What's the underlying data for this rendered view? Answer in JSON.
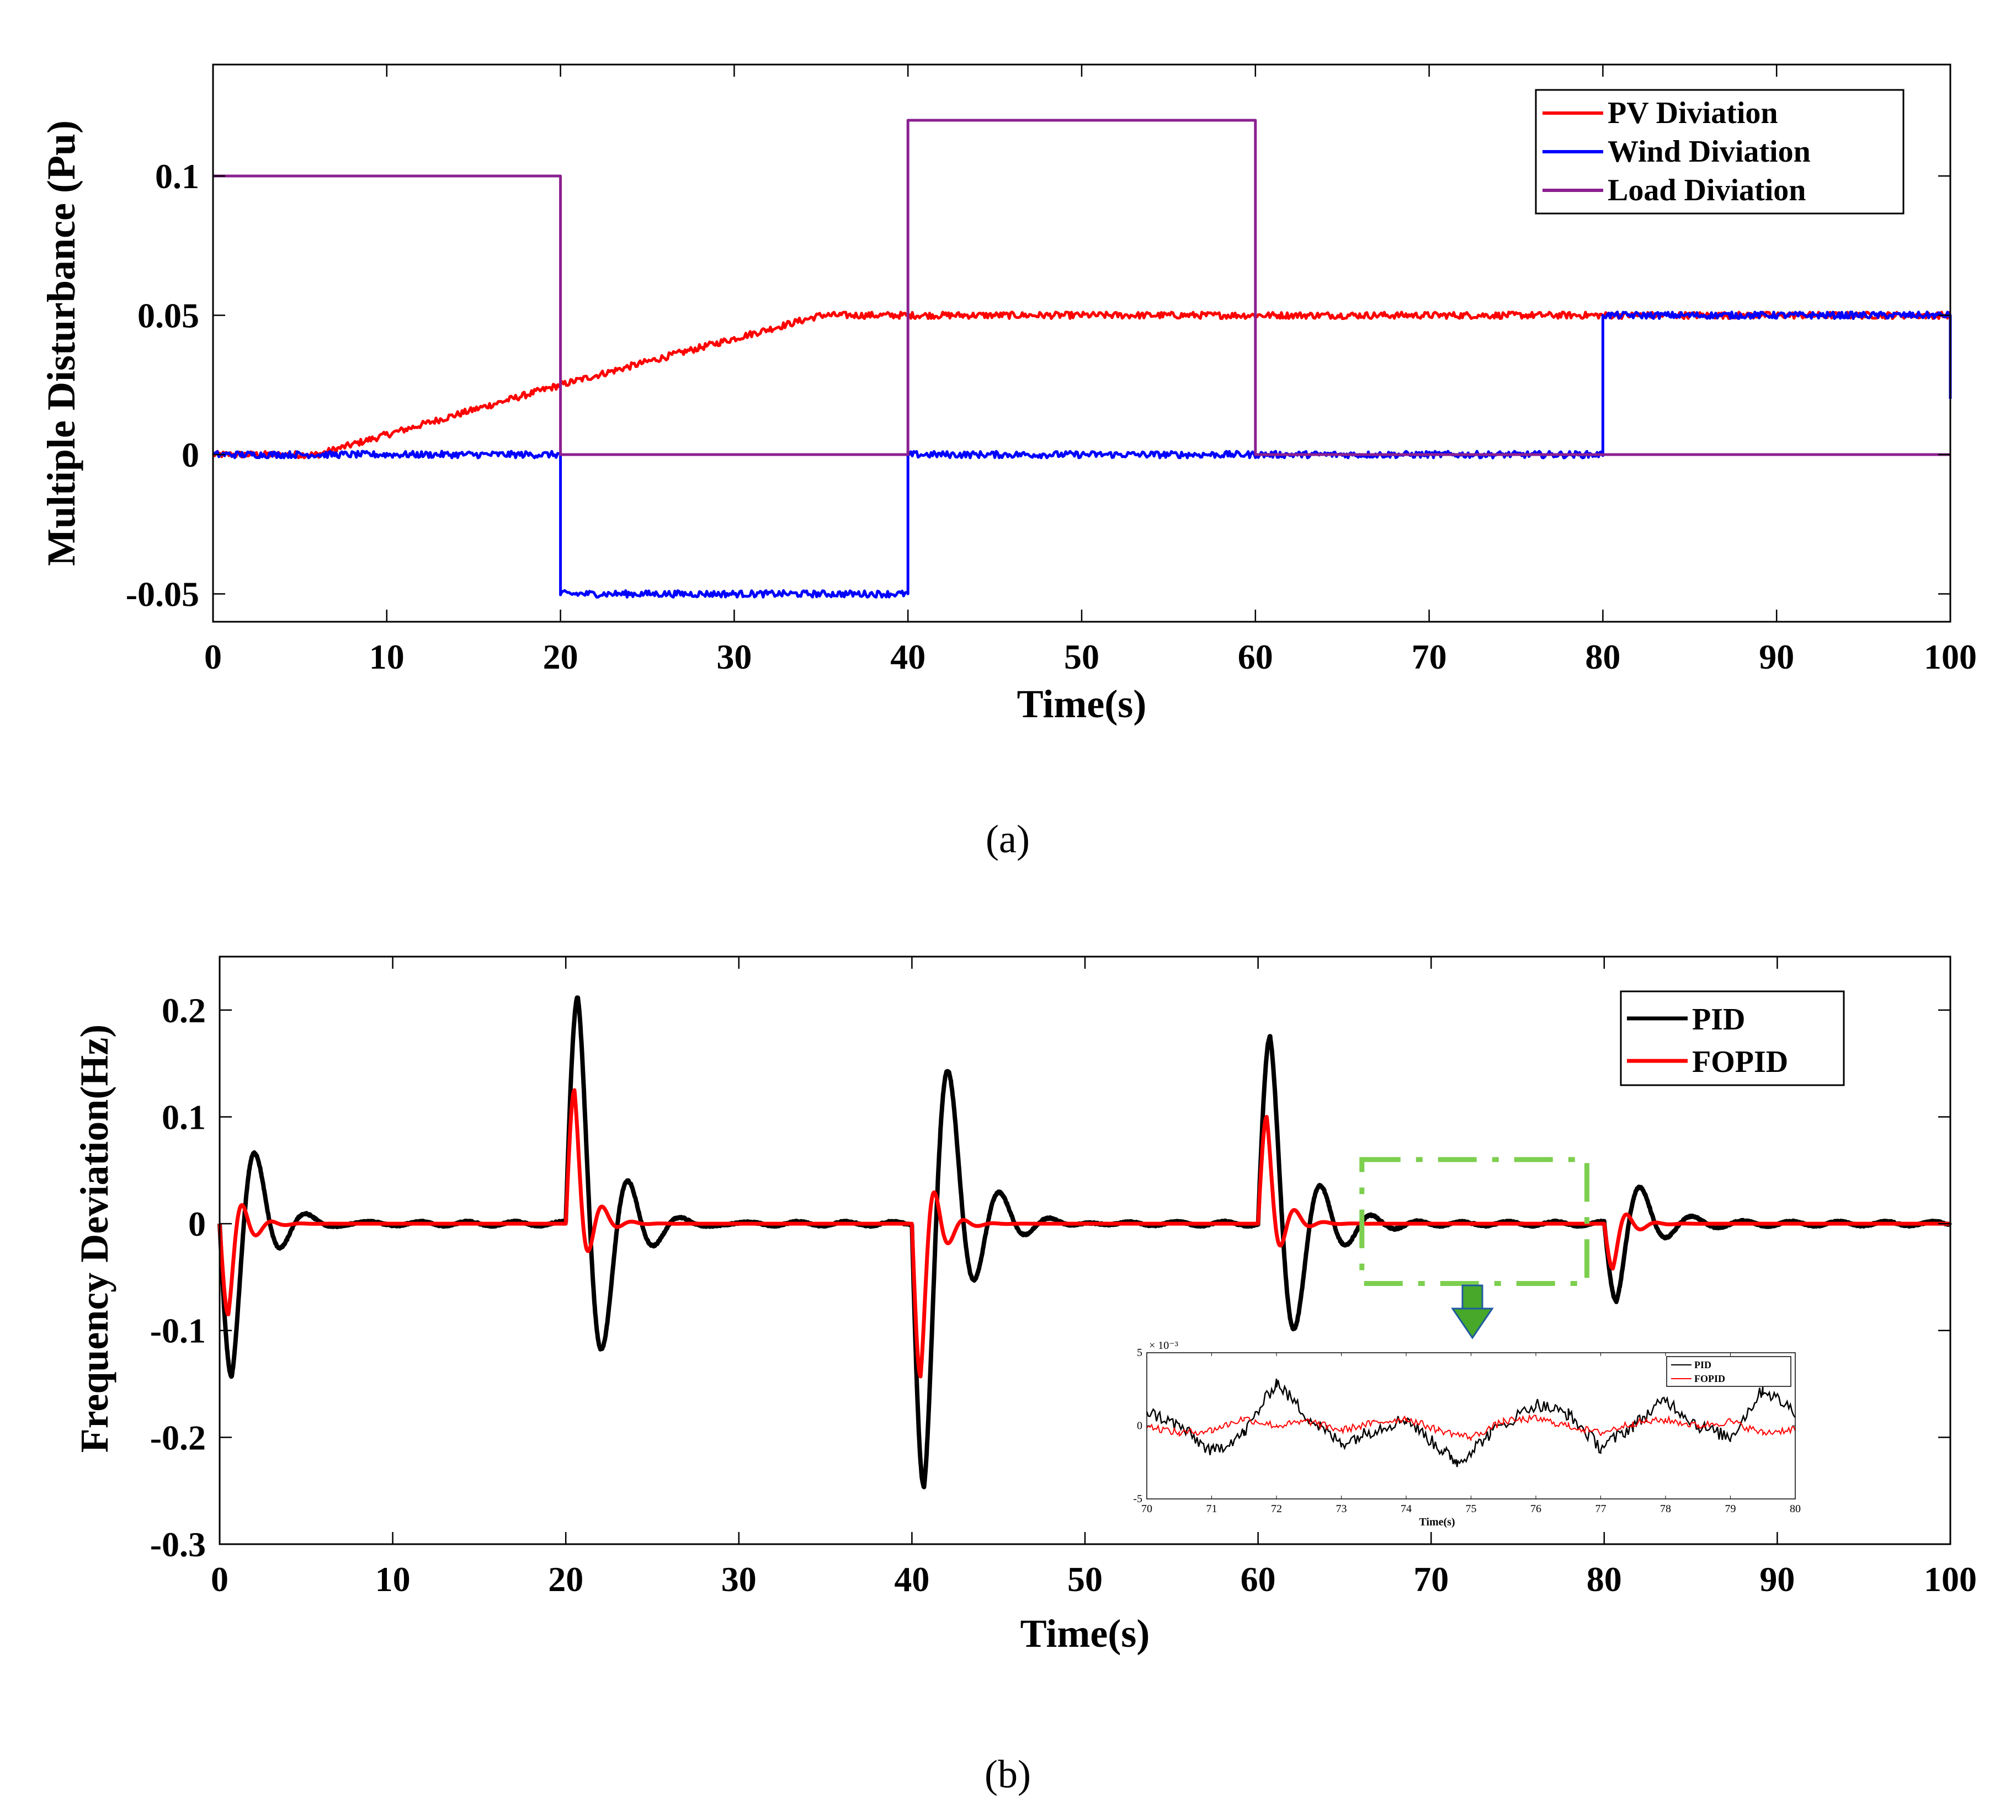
{
  "chart_data": [
    {
      "id": "a",
      "type": "line",
      "caption": "(a)",
      "xlabel": "Time(s)",
      "ylabel": "Multiple Disturbance (Pu)",
      "xlim": [
        0,
        100
      ],
      "ylim": [
        -0.06,
        0.14
      ],
      "xticks": [
        0,
        10,
        20,
        30,
        40,
        50,
        60,
        70,
        80,
        90,
        100
      ],
      "xtick_labels": [
        "0",
        "10",
        "20",
        "30",
        "40",
        "50",
        "60",
        "70",
        "80",
        "90",
        "100"
      ],
      "yticks": [
        -0.05,
        0,
        0.05,
        0.1
      ],
      "ytick_labels": [
        "-0.05",
        "0",
        "0.05",
        "0.1"
      ],
      "legend_position": "top-right",
      "series": [
        {
          "name": "PV Diviation",
          "color": "#ff0000",
          "noise": 0.0012,
          "points": [
            [
              0,
              0
            ],
            [
              6,
              0
            ],
            [
              20,
              0.025
            ],
            [
              35,
              0.05
            ],
            [
              100,
              0.05
            ]
          ]
        },
        {
          "name": "Wind Diviation",
          "color": "#0000ff",
          "noise": 0.0012,
          "points": [
            [
              0,
              0
            ],
            [
              20,
              0
            ],
            [
              20,
              -0.05
            ],
            [
              40,
              -0.05
            ],
            [
              40,
              0
            ],
            [
              80,
              0
            ],
            [
              80,
              0.05
            ],
            [
              100,
              0.05
            ],
            [
              100,
              0.02
            ]
          ]
        },
        {
          "name": "Load Diviation",
          "color": "#8b2090",
          "noise": 0,
          "points": [
            [
              0,
              0.1
            ],
            [
              20,
              0.1
            ],
            [
              20,
              0
            ],
            [
              40,
              0
            ],
            [
              40,
              0.12
            ],
            [
              60,
              0.12
            ],
            [
              60,
              0
            ],
            [
              100,
              0
            ]
          ]
        }
      ]
    },
    {
      "id": "b",
      "type": "line",
      "caption": "(b)",
      "xlabel": "Time(s)",
      "ylabel": "Frequency Deviation(Hz)",
      "xlim": [
        0,
        100
      ],
      "ylim": [
        -0.3,
        0.25
      ],
      "xticks": [
        0,
        10,
        20,
        30,
        40,
        50,
        60,
        70,
        80,
        90,
        100
      ],
      "xtick_labels": [
        "0",
        "10",
        "20",
        "30",
        "40",
        "50",
        "60",
        "70",
        "80",
        "90",
        "100"
      ],
      "yticks": [
        -0.3,
        -0.2,
        -0.1,
        0,
        0.1,
        0.2
      ],
      "ytick_labels": [
        "-0.3",
        "-0.2",
        "-0.1",
        "0",
        "0.1",
        "0.2"
      ],
      "legend_position": "top-right",
      "series": [
        {
          "name": "PID",
          "color": "#000000",
          "events": [
            {
              "t0": 0,
              "amp": -0.145,
              "peak": 0.7,
              "period": 2.9,
              "decay": 1.6
            },
            {
              "t0": 20,
              "amp": 0.213,
              "peak": 0.7,
              "period": 3.0,
              "decay": 1.8
            },
            {
              "t0": 40,
              "amp": -0.245,
              "peak": 0.7,
              "period": 3.0,
              "decay": 1.9
            },
            {
              "t0": 60,
              "amp": 0.173,
              "peak": 0.7,
              "period": 3.0,
              "decay": 1.8
            },
            {
              "t0": 80,
              "amp": -0.072,
              "peak": 0.7,
              "period": 2.9,
              "decay": 1.6
            }
          ]
        },
        {
          "name": "FOPID",
          "color": "#ff0000",
          "events": [
            {
              "t0": 0,
              "amp": -0.085,
              "peak": 0.5,
              "period": 1.7,
              "decay": 0.8
            },
            {
              "t0": 20,
              "amp": 0.125,
              "peak": 0.5,
              "period": 1.7,
              "decay": 0.8
            },
            {
              "t0": 40,
              "amp": -0.143,
              "peak": 0.5,
              "period": 1.7,
              "decay": 0.8
            },
            {
              "t0": 60,
              "amp": 0.1,
              "peak": 0.5,
              "period": 1.7,
              "decay": 0.8
            },
            {
              "t0": 80,
              "amp": -0.042,
              "peak": 0.5,
              "period": 1.7,
              "decay": 0.8
            }
          ]
        }
      ],
      "zoom_region": {
        "x": [
          66,
          79
        ],
        "y": [
          -0.056,
          0.06
        ]
      },
      "inset": {
        "xlabel": "Time(s)",
        "xlim": [
          70,
          80
        ],
        "ylim": [
          -5,
          5
        ],
        "y_exponent": "× 10⁻³",
        "xticks": [
          70,
          71,
          72,
          73,
          74,
          75,
          76,
          77,
          78,
          79,
          80
        ],
        "xtick_labels": [
          "70",
          "71",
          "72",
          "73",
          "74",
          "75",
          "76",
          "77",
          "78",
          "79",
          "80"
        ],
        "yticks": [
          -5,
          0,
          5
        ],
        "ytick_labels": [
          "-5",
          "0",
          "5"
        ],
        "series": [
          {
            "name": "PID",
            "color": "#000000",
            "points": [
              [
                70,
                1.0
              ],
              [
                70.5,
                0
              ],
              [
                71,
                -1.8
              ],
              [
                71.5,
                -0.5
              ],
              [
                72,
                3.0
              ],
              [
                72.5,
                0.5
              ],
              [
                73,
                -1.2
              ],
              [
                73.5,
                -0.3
              ],
              [
                74,
                0.5
              ],
              [
                74.5,
                -1.5
              ],
              [
                74.8,
                -2.5
              ],
              [
                75.3,
                -0.5
              ],
              [
                76,
                1.5
              ],
              [
                76.5,
                0.8
              ],
              [
                77,
                -1.5
              ],
              [
                77.5,
                0
              ],
              [
                78,
                1.8
              ],
              [
                78.5,
                0
              ],
              [
                79,
                -0.8
              ],
              [
                79.5,
                2.5
              ],
              [
                80,
                1.0
              ]
            ]
          },
          {
            "name": "FOPID",
            "color": "#ff0000",
            "points": [
              [
                70,
                0
              ],
              [
                70.5,
                -0.5
              ],
              [
                71,
                -0.3
              ],
              [
                71.5,
                0.5
              ],
              [
                72,
                0
              ],
              [
                72.5,
                0.3
              ],
              [
                73,
                -0.3
              ],
              [
                73.5,
                0.2
              ],
              [
                74,
                0.5
              ],
              [
                74.5,
                -0.3
              ],
              [
                75,
                -0.8
              ],
              [
                75.5,
                0.3
              ],
              [
                76,
                0.5
              ],
              [
                76.5,
                0
              ],
              [
                77,
                -0.5
              ],
              [
                77.5,
                0.2
              ],
              [
                78,
                0.4
              ],
              [
                78.5,
                0
              ],
              [
                79,
                0.3
              ],
              [
                79.5,
                -0.5
              ],
              [
                80,
                -0.2
              ]
            ]
          }
        ]
      }
    }
  ],
  "colors": {
    "zoom_box": "#7dcf4f",
    "arrow_fill": "#47a82a",
    "arrow_stroke": "#1e5aa0"
  }
}
